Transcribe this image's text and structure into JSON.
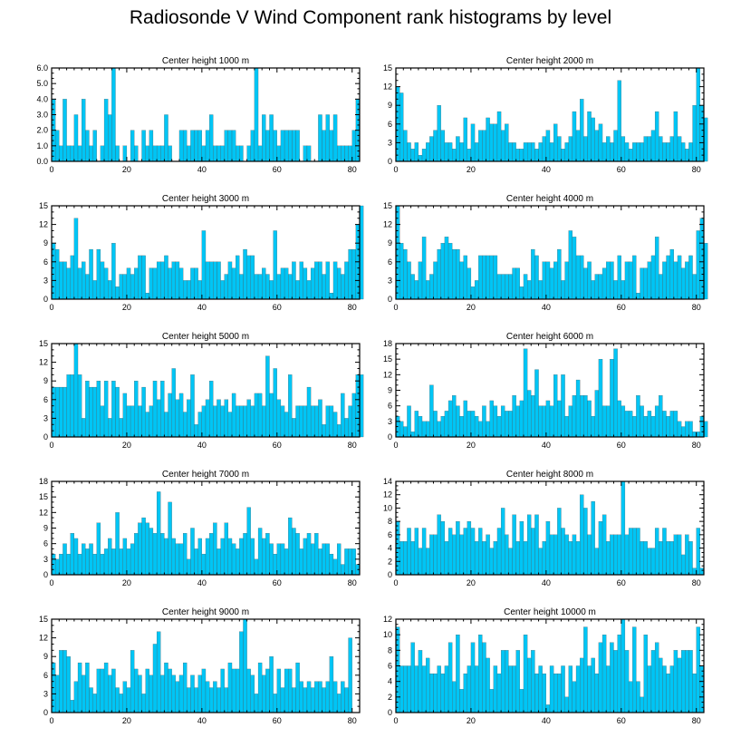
{
  "title": "Radiosonde V Wind Component rank histograms by level",
  "chart_data": [
    {
      "type": "bar",
      "title": "Center height 1000 m",
      "xlim": [
        0,
        82
      ],
      "ylim": [
        0,
        6
      ],
      "xticks": [
        0,
        20,
        40,
        60,
        80
      ],
      "xtick_labels": [
        "0",
        "20",
        "40",
        "60",
        "80"
      ],
      "yticks": [
        0,
        1,
        2,
        3,
        4,
        5,
        6
      ],
      "ytick_labels": [
        "0.0",
        "1.0",
        "2.0",
        "3.0",
        "4.0",
        "5.0",
        "6.0"
      ],
      "values": [
        4,
        2,
        1,
        4,
        1,
        1,
        3,
        1,
        4,
        2,
        1,
        2,
        0,
        1,
        4,
        3,
        6,
        1,
        0,
        1,
        0,
        2,
        1,
        0,
        2,
        1,
        2,
        1,
        1,
        1,
        3,
        1,
        0,
        0,
        2,
        2,
        1,
        2,
        2,
        2,
        1,
        2,
        3,
        1,
        1,
        1,
        2,
        2,
        2,
        1,
        1,
        0,
        1,
        2,
        6,
        1,
        3,
        2,
        3,
        2,
        1,
        2,
        2,
        2,
        2,
        2,
        0,
        1,
        1,
        0,
        0,
        3,
        2,
        3,
        2,
        3,
        1,
        1,
        1,
        1,
        2,
        4
      ]
    },
    {
      "type": "bar",
      "title": "Center height 2000 m",
      "xlim": [
        0,
        82
      ],
      "ylim": [
        0,
        15
      ],
      "xticks": [
        0,
        20,
        40,
        60,
        80
      ],
      "xtick_labels": [
        "0",
        "20",
        "40",
        "60",
        "80"
      ],
      "yticks": [
        0,
        3,
        6,
        9,
        12,
        15
      ],
      "ytick_labels": [
        "0",
        "3",
        "6",
        "9",
        "12",
        "15"
      ],
      "values": [
        12,
        11,
        5,
        3,
        2,
        3,
        1,
        2,
        3,
        4,
        5,
        9,
        5,
        3,
        3,
        2,
        4,
        3,
        7,
        2,
        6,
        3,
        5,
        5,
        7,
        6,
        6,
        8,
        5,
        6,
        3,
        3,
        2,
        2,
        3,
        3,
        3,
        2,
        3,
        4,
        5,
        3,
        6,
        4,
        2,
        3,
        4,
        8,
        5,
        10,
        4,
        8,
        7,
        5,
        6,
        3,
        4,
        3,
        5,
        13,
        4,
        3,
        2,
        3,
        3,
        3,
        4,
        4,
        5,
        8,
        4,
        3,
        3,
        4,
        8,
        4,
        3,
        2,
        3,
        9,
        15,
        9,
        7
      ]
    },
    {
      "type": "bar",
      "title": "Center height 3000 m",
      "xlim": [
        0,
        82
      ],
      "ylim": [
        0,
        15
      ],
      "xticks": [
        0,
        20,
        40,
        60,
        80
      ],
      "xtick_labels": [
        "0",
        "20",
        "40",
        "60",
        "80"
      ],
      "yticks": [
        0,
        3,
        6,
        9,
        12,
        15
      ],
      "ytick_labels": [
        "0",
        "3",
        "6",
        "9",
        "12",
        "15"
      ],
      "values": [
        9,
        8,
        6,
        6,
        5,
        7,
        13,
        5,
        6,
        4,
        8,
        3,
        8,
        6,
        5,
        3,
        9,
        2,
        4,
        4,
        5,
        4,
        5,
        7,
        7,
        1,
        5,
        5,
        6,
        6,
        7,
        5,
        6,
        6,
        5,
        3,
        3,
        5,
        5,
        3,
        11,
        6,
        6,
        6,
        6,
        3,
        4,
        6,
        5,
        7,
        4,
        8,
        7,
        7,
        4,
        4,
        5,
        4,
        3,
        11,
        4,
        5,
        5,
        4,
        6,
        3,
        6,
        5,
        3,
        5,
        6,
        6,
        4,
        6,
        1,
        6,
        5,
        4,
        6,
        8,
        8,
        12,
        15
      ]
    },
    {
      "type": "bar",
      "title": "Center height 4000 m",
      "xlim": [
        0,
        82
      ],
      "ylim": [
        0,
        15
      ],
      "xticks": [
        0,
        20,
        40,
        60,
        80
      ],
      "xtick_labels": [
        "0",
        "20",
        "40",
        "60",
        "80"
      ],
      "yticks": [
        0,
        3,
        6,
        9,
        12,
        15
      ],
      "ytick_labels": [
        "0",
        "3",
        "6",
        "9",
        "12",
        "15"
      ],
      "values": [
        15,
        9,
        8,
        6,
        4,
        3,
        6,
        10,
        3,
        4,
        6,
        8,
        9,
        10,
        9,
        8,
        8,
        6,
        7,
        5,
        2,
        3,
        7,
        7,
        7,
        7,
        7,
        4,
        4,
        4,
        4,
        5,
        5,
        2,
        4,
        3,
        8,
        7,
        3,
        6,
        6,
        5,
        6,
        8,
        3,
        6,
        11,
        10,
        7,
        7,
        5,
        6,
        3,
        4,
        4,
        5,
        6,
        6,
        3,
        7,
        3,
        6,
        6,
        7,
        1,
        5,
        5,
        6,
        7,
        10,
        4,
        6,
        7,
        8,
        6,
        7,
        5,
        6,
        7,
        4,
        11,
        13,
        9
      ]
    },
    {
      "type": "bar",
      "title": "Center height 5000 m",
      "xlim": [
        0,
        82
      ],
      "ylim": [
        0,
        15
      ],
      "xticks": [
        0,
        20,
        40,
        60,
        80
      ],
      "xtick_labels": [
        "0",
        "20",
        "40",
        "60",
        "80"
      ],
      "yticks": [
        0,
        3,
        6,
        9,
        12,
        15
      ],
      "ytick_labels": [
        "0",
        "3",
        "6",
        "9",
        "12",
        "15"
      ],
      "values": [
        8,
        8,
        8,
        8,
        10,
        10,
        15,
        10,
        3,
        9,
        8,
        8,
        9,
        5,
        9,
        3,
        9,
        8,
        3,
        7,
        5,
        5,
        9,
        5,
        8,
        4,
        5,
        9,
        6,
        9,
        4,
        7,
        11,
        6,
        7,
        4,
        6,
        10,
        2,
        4,
        5,
        6,
        9,
        5,
        6,
        5,
        6,
        4,
        7,
        5,
        5,
        5,
        6,
        5,
        7,
        7,
        5,
        13,
        7,
        11,
        6,
        5,
        4,
        10,
        3,
        5,
        5,
        5,
        8,
        5,
        5,
        6,
        2,
        5,
        5,
        4,
        2,
        7,
        3,
        5,
        7,
        10,
        10
      ]
    },
    {
      "type": "bar",
      "title": "Center height 6000 m",
      "xlim": [
        0,
        82
      ],
      "ylim": [
        0,
        18
      ],
      "xticks": [
        0,
        20,
        40,
        60,
        80
      ],
      "xtick_labels": [
        "0",
        "20",
        "40",
        "60",
        "80"
      ],
      "yticks": [
        0,
        3,
        6,
        9,
        12,
        15,
        18
      ],
      "ytick_labels": [
        "0",
        "3",
        "6",
        "9",
        "12",
        "15",
        "18"
      ],
      "values": [
        4,
        3,
        2,
        6,
        1,
        5,
        4,
        3,
        3,
        10,
        5,
        3,
        4,
        5,
        7,
        8,
        6,
        4,
        7,
        5,
        5,
        4,
        3,
        6,
        3,
        7,
        6,
        4,
        6,
        5,
        5,
        8,
        6,
        7,
        17,
        9,
        8,
        13,
        6,
        6,
        7,
        6,
        12,
        7,
        12,
        4,
        6,
        8,
        11,
        8,
        8,
        7,
        4,
        9,
        15,
        6,
        6,
        15,
        17,
        7,
        6,
        5,
        5,
        4,
        8,
        6,
        4,
        5,
        4,
        6,
        8,
        5,
        4,
        5,
        5,
        3,
        2,
        3,
        3,
        1,
        1,
        4,
        3
      ]
    },
    {
      "type": "bar",
      "title": "Center height 7000 m",
      "xlim": [
        0,
        82
      ],
      "ylim": [
        0,
        18
      ],
      "xticks": [
        0,
        20,
        40,
        60,
        80
      ],
      "xtick_labels": [
        "0",
        "20",
        "40",
        "60",
        "80"
      ],
      "yticks": [
        0,
        3,
        6,
        9,
        12,
        15,
        18
      ],
      "ytick_labels": [
        "0",
        "3",
        "6",
        "9",
        "12",
        "15",
        "18"
      ],
      "values": [
        4,
        3,
        4,
        6,
        4,
        8,
        7,
        4,
        6,
        5,
        6,
        4,
        10,
        4,
        5,
        7,
        5,
        12,
        5,
        7,
        5,
        6,
        8,
        10,
        11,
        10,
        9,
        8,
        16,
        8,
        7,
        14,
        7,
        6,
        6,
        8,
        3,
        9,
        5,
        7,
        4,
        7,
        8,
        10,
        5,
        7,
        10,
        7,
        6,
        5,
        7,
        8,
        13,
        7,
        3,
        9,
        7,
        8,
        6,
        4,
        6,
        6,
        5,
        11,
        9,
        8,
        5,
        7,
        8,
        6,
        8,
        5,
        6,
        6,
        4,
        3,
        6,
        2,
        5,
        5,
        5,
        2
      ]
    },
    {
      "type": "bar",
      "title": "Center height 8000 m",
      "xlim": [
        0,
        82
      ],
      "ylim": [
        0,
        14
      ],
      "xticks": [
        0,
        20,
        40,
        60,
        80
      ],
      "xtick_labels": [
        "0",
        "20",
        "40",
        "60",
        "80"
      ],
      "yticks": [
        0,
        2,
        4,
        6,
        8,
        10,
        12,
        14
      ],
      "ytick_labels": [
        "0",
        "2",
        "4",
        "6",
        "8",
        "10",
        "12",
        "14"
      ],
      "values": [
        8,
        5,
        5,
        7,
        5,
        7,
        4,
        7,
        4,
        6,
        6,
        9,
        8,
        5,
        7,
        6,
        8,
        6,
        7,
        8,
        7,
        5,
        7,
        5,
        6,
        4,
        5,
        7,
        10,
        6,
        4,
        9,
        5,
        8,
        5,
        9,
        7,
        9,
        4,
        5,
        8,
        6,
        6,
        10,
        7,
        6,
        5,
        6,
        5,
        12,
        10,
        6,
        11,
        4,
        8,
        9,
        5,
        6,
        6,
        6,
        14,
        6,
        7,
        7,
        7,
        5,
        5,
        4,
        4,
        7,
        5,
        7,
        5,
        5,
        6,
        6,
        3,
        6,
        5,
        1,
        7,
        1
      ]
    },
    {
      "type": "bar",
      "title": "Center height 9000 m",
      "xlim": [
        0,
        82
      ],
      "ylim": [
        0,
        15
      ],
      "xticks": [
        0,
        20,
        40,
        60,
        80
      ],
      "xtick_labels": [
        "0",
        "20",
        "40",
        "60",
        "80"
      ],
      "yticks": [
        0,
        3,
        6,
        9,
        12,
        15
      ],
      "ytick_labels": [
        "0",
        "3",
        "6",
        "9",
        "12",
        "15"
      ],
      "values": [
        8,
        6,
        10,
        10,
        9,
        2,
        5,
        8,
        6,
        8,
        4,
        3,
        7,
        7,
        8,
        6,
        7,
        4,
        3,
        5,
        4,
        10,
        7,
        6,
        3,
        7,
        6,
        11,
        13,
        6,
        8,
        7,
        6,
        5,
        6,
        8,
        4,
        6,
        4,
        6,
        7,
        5,
        4,
        5,
        4,
        7,
        4,
        8,
        7,
        7,
        13,
        15,
        7,
        6,
        3,
        8,
        6,
        7,
        9,
        3,
        7,
        4,
        7,
        7,
        4,
        8,
        5,
        4,
        5,
        4,
        5,
        5,
        4,
        5,
        9,
        5,
        3,
        5,
        4,
        12
      ]
    },
    {
      "type": "bar",
      "title": "Center height 10000 m",
      "xlim": [
        0,
        82
      ],
      "ylim": [
        0,
        12
      ],
      "xticks": [
        0,
        20,
        40,
        60,
        80
      ],
      "xtick_labels": [
        "0",
        "20",
        "40",
        "60",
        "80"
      ],
      "yticks": [
        0,
        2,
        4,
        6,
        8,
        10,
        12
      ],
      "ytick_labels": [
        "0",
        "2",
        "4",
        "6",
        "8",
        "10",
        "12"
      ],
      "values": [
        11,
        6,
        6,
        6,
        9,
        6,
        8,
        6,
        7,
        5,
        5,
        6,
        5,
        6,
        9,
        4,
        10,
        3,
        5,
        6,
        9,
        6,
        10,
        9,
        7,
        3,
        6,
        5,
        8,
        8,
        6,
        6,
        8,
        3,
        10,
        7,
        8,
        5,
        6,
        5,
        1,
        6,
        5,
        5,
        6,
        2,
        6,
        4,
        6,
        7,
        11,
        6,
        7,
        5,
        9,
        10,
        6,
        9,
        8,
        10,
        12,
        8,
        4,
        11,
        4,
        2,
        10,
        6,
        8,
        9,
        7,
        6,
        5,
        6,
        8,
        7,
        8,
        8,
        8,
        5,
        11,
        6
      ]
    }
  ]
}
